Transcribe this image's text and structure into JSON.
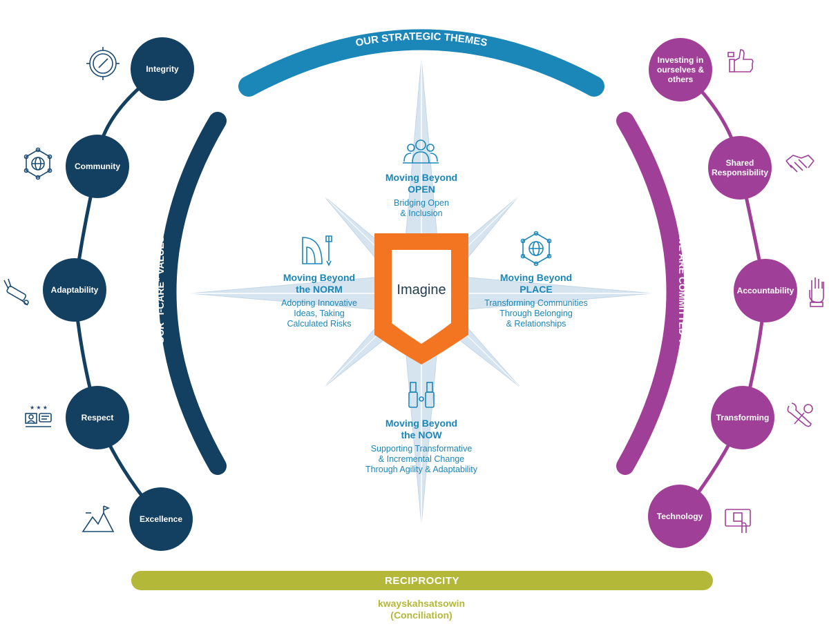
{
  "strategic_themes_label": "OUR STRATEGIC THEMES",
  "icare_label": "OUR \"I-CARE\" VALUES",
  "committed_label": "WE ARE COMMITTED TO",
  "center_label": "Imagine",
  "values": [
    {
      "label": "Integrity",
      "icon": "compass-icon"
    },
    {
      "label": "Community",
      "icon": "network-globe-icon"
    },
    {
      "label": "Adaptability",
      "icon": "multitool-icon"
    },
    {
      "label": "Respect",
      "icon": "review-chat-icon"
    },
    {
      "label": "Excellence",
      "icon": "mountain-flag-icon"
    }
  ],
  "commitments": [
    {
      "label": "Investing in ourselves & others",
      "icon": "thumbs-up-icon"
    },
    {
      "label": "Shared Responsibility",
      "icon": "handshake-icon"
    },
    {
      "label": "Accountability",
      "icon": "raised-hand-icon"
    },
    {
      "label": "Transforming",
      "icon": "tools-icon"
    },
    {
      "label": "Technology",
      "icon": "tablet-touch-icon"
    }
  ],
  "themes": {
    "open": {
      "title_line1": "Moving Beyond",
      "title_line2": "OPEN",
      "sub_line1": "Bridging Open",
      "sub_line2": "& Inclusion",
      "icon": "people-group-icon"
    },
    "norm": {
      "title_line1": "Moving Beyond",
      "title_line2_prefix": "the ",
      "title_line2_bold": "NORM",
      "sub_line1": "Adopting Innovative",
      "sub_line2": "Ideas, Taking",
      "sub_line3": "Calculated Risks",
      "icon": "ruler-tool-icon"
    },
    "place": {
      "title_line1": "Moving Beyond",
      "title_line2": "PLACE",
      "sub_line1": "Transforming Communities",
      "sub_line2": "Through Belonging",
      "sub_line3": "& Relationships",
      "icon": "globe-network-icon"
    },
    "now": {
      "title_line1": "Moving Beyond",
      "title_line2_prefix": "the ",
      "title_line2_bold": "NOW",
      "sub_line1": "Supporting Transformative",
      "sub_line2": "& Incremental Change",
      "sub_line3": "Through Agility & Adaptability",
      "icon": "binoculars-icon"
    }
  },
  "reciprocity_label": "RECIPROCITY",
  "footer": {
    "line1": "kwayskahsatsowin",
    "line2": "(Conciliation)"
  },
  "colors": {
    "navy": "#133f61",
    "purple": "#a03f98",
    "blue": "#1b86b8",
    "orange": "#f47521",
    "olive": "#b4b839",
    "star": "#d6e4ef"
  }
}
